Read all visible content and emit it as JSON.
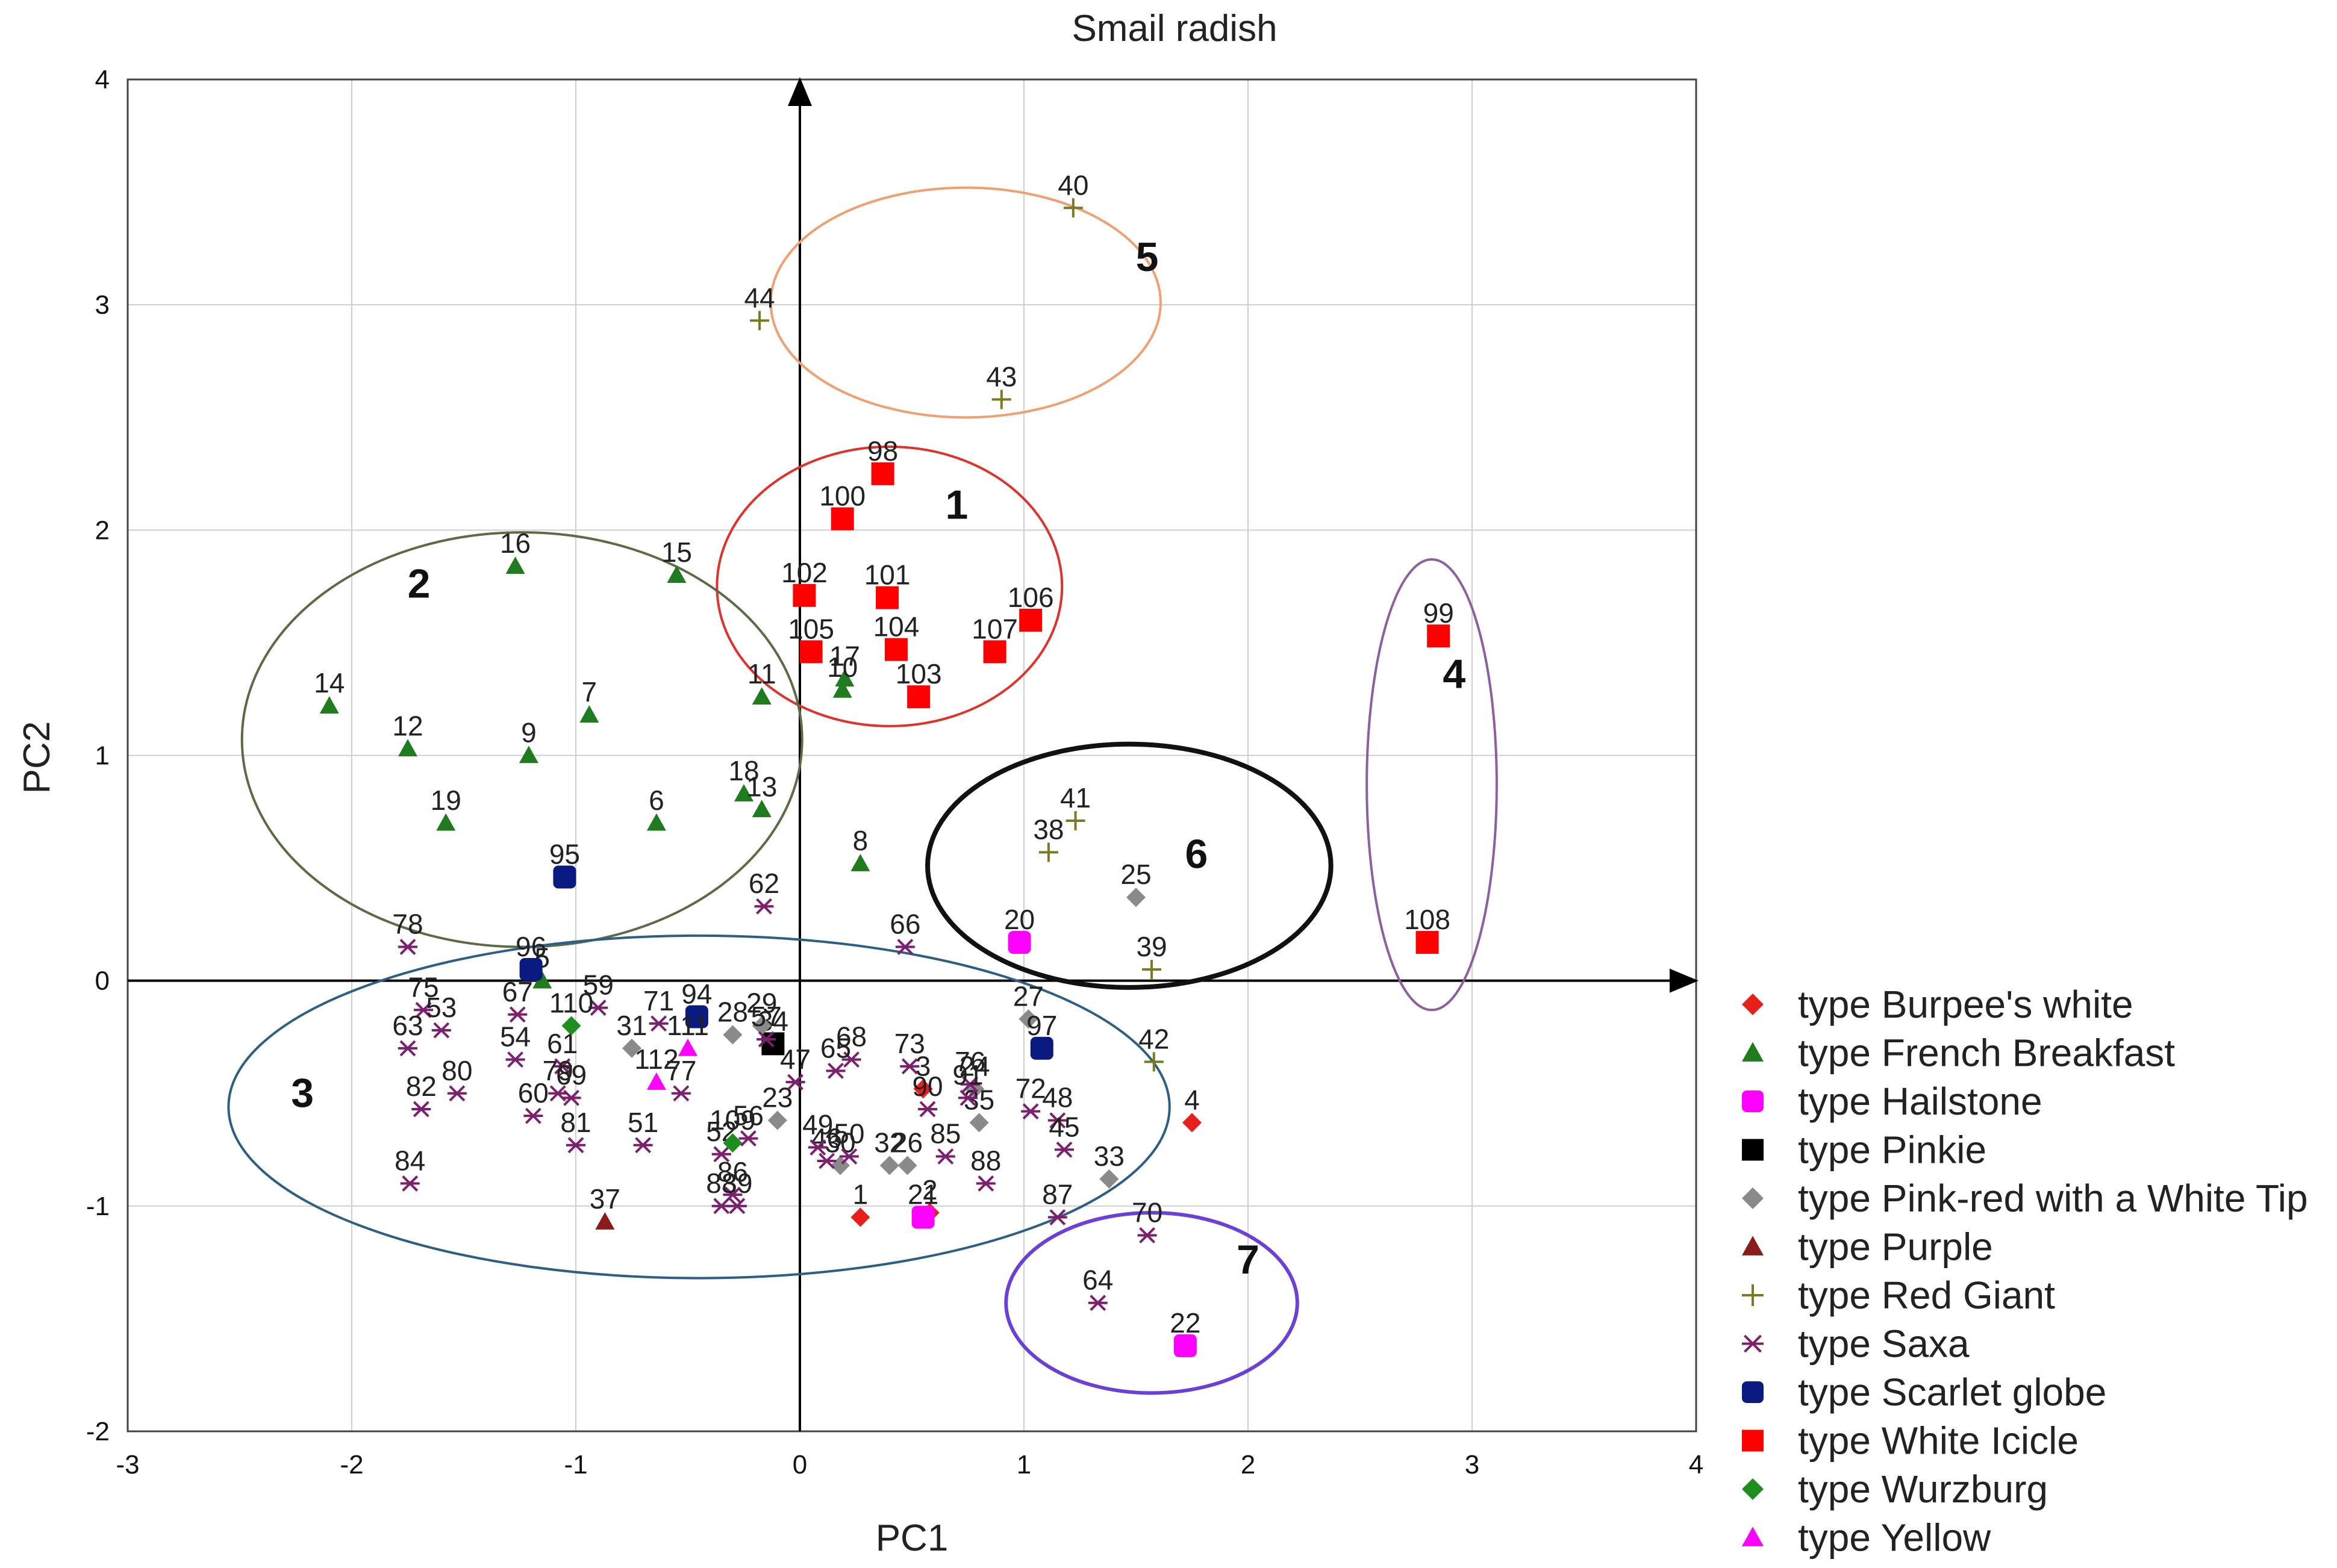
{
  "chart_data": {
    "type": "scatter",
    "title": "Smail radish",
    "xlabel": "PC1",
    "ylabel": "PC2",
    "xlim": [
      -3,
      4
    ],
    "ylim": [
      -2,
      4
    ],
    "xticks": [
      "-3",
      "-2",
      "-1",
      "0",
      "1",
      "2",
      "3",
      "4"
    ],
    "yticks": [
      "-2",
      "-1",
      "0",
      "1",
      "2",
      "3",
      "4"
    ],
    "grid": true,
    "legend_position": "right",
    "series": [
      {
        "name": "type Burpee's white",
        "marker": "diamond",
        "color": "#e8201c",
        "points": [
          {
            "id": "1",
            "x": 0.27,
            "y": -1.05
          },
          {
            "id": "2",
            "x": 0.58,
            "y": -1.03
          },
          {
            "id": "4",
            "x": 1.75,
            "y": -0.63
          },
          {
            "id": "3",
            "x": 0.55,
            "y": -0.48
          }
        ]
      },
      {
        "name": "type French Breakfast",
        "marker": "triangle",
        "color": "#1e7b1e",
        "points": [
          {
            "id": "16",
            "x": -1.27,
            "y": 1.84
          },
          {
            "id": "15",
            "x": -0.55,
            "y": 1.8
          },
          {
            "id": "14",
            "x": -2.1,
            "y": 1.22
          },
          {
            "id": "12",
            "x": -1.75,
            "y": 1.03
          },
          {
            "id": "9",
            "x": -1.21,
            "y": 1.0
          },
          {
            "id": "7",
            "x": -0.94,
            "y": 1.18
          },
          {
            "id": "19",
            "x": -1.58,
            "y": 0.7
          },
          {
            "id": "6",
            "x": -0.64,
            "y": 0.7
          },
          {
            "id": "18",
            "x": -0.25,
            "y": 0.83
          },
          {
            "id": "13",
            "x": -0.17,
            "y": 0.76
          },
          {
            "id": "11",
            "x": -0.17,
            "y": 1.26
          },
          {
            "id": "17",
            "x": 0.2,
            "y": 1.34
          },
          {
            "id": "10",
            "x": 0.19,
            "y": 1.29
          },
          {
            "id": "8",
            "x": 0.27,
            "y": 0.52
          },
          {
            "id": "5",
            "x": -1.15,
            "y": 0.0
          }
        ]
      },
      {
        "name": "type Hailstone",
        "marker": "circle",
        "color": "#ff00ff",
        "points": [
          {
            "id": "20",
            "x": 0.98,
            "y": 0.17
          },
          {
            "id": "21",
            "x": 0.55,
            "y": -1.05
          },
          {
            "id": "22",
            "x": 1.72,
            "y": -1.62
          }
        ]
      },
      {
        "name": "type Pinkie",
        "marker": "square",
        "color": "#000000",
        "points": [
          {
            "id": "34",
            "x": -0.12,
            "y": -0.28
          }
        ]
      },
      {
        "name": "type Pink-red with a White Tip",
        "marker": "diamond",
        "color": "#8a8a8a",
        "points": [
          {
            "id": "25",
            "x": 1.5,
            "y": 0.37
          },
          {
            "id": "27",
            "x": 1.02,
            "y": -0.17
          },
          {
            "id": "28",
            "x": -0.3,
            "y": -0.24
          },
          {
            "id": "29",
            "x": -0.17,
            "y": -0.2
          },
          {
            "id": "31",
            "x": -0.75,
            "y": -0.3
          },
          {
            "id": "33",
            "x": 1.38,
            "y": -0.88
          },
          {
            "id": "23",
            "x": -0.1,
            "y": -0.62
          },
          {
            "id": "24",
            "x": 0.78,
            "y": -0.48
          },
          {
            "id": "26",
            "x": 0.48,
            "y": -0.82
          },
          {
            "id": "32",
            "x": 0.4,
            "y": -0.82
          },
          {
            "id": "30",
            "x": 0.18,
            "y": -0.82
          },
          {
            "id": "35",
            "x": 0.8,
            "y": -0.63
          }
        ]
      },
      {
        "name": "type Purple",
        "marker": "triangle",
        "color": "#8b1a1a",
        "points": [
          {
            "id": "37",
            "x": -0.87,
            "y": -1.07
          }
        ]
      },
      {
        "name": "type Red Giant",
        "marker": "plus",
        "color": "#7a7a22",
        "points": [
          {
            "id": "40",
            "x": 1.22,
            "y": 3.43
          },
          {
            "id": "44",
            "x": -0.18,
            "y": 2.93
          },
          {
            "id": "43",
            "x": 0.9,
            "y": 2.58
          },
          {
            "id": "41",
            "x": 1.23,
            "y": 0.71
          },
          {
            "id": "38",
            "x": 1.11,
            "y": 0.57
          },
          {
            "id": "39",
            "x": 1.57,
            "y": 0.05
          },
          {
            "id": "42",
            "x": 1.58,
            "y": -0.36
          }
        ]
      },
      {
        "name": "type Saxa",
        "marker": "asterisk",
        "color": "#7b1f6e",
        "points": [
          {
            "id": "78",
            "x": -1.75,
            "y": 0.15
          },
          {
            "id": "62",
            "x": -0.16,
            "y": 0.33
          },
          {
            "id": "66",
            "x": 0.47,
            "y": 0.15
          },
          {
            "id": "75",
            "x": -1.68,
            "y": -0.13
          },
          {
            "id": "63",
            "x": -1.75,
            "y": -0.3
          },
          {
            "id": "53",
            "x": -1.6,
            "y": -0.22
          },
          {
            "id": "82",
            "x": -1.69,
            "y": -0.57
          },
          {
            "id": "80",
            "x": -1.53,
            "y": -0.5
          },
          {
            "id": "84",
            "x": -1.74,
            "y": -0.9
          },
          {
            "id": "67",
            "x": -1.26,
            "y": -0.15
          },
          {
            "id": "54",
            "x": -1.27,
            "y": -0.35
          },
          {
            "id": "60",
            "x": -1.19,
            "y": -0.6
          },
          {
            "id": "61",
            "x": -1.06,
            "y": -0.38
          },
          {
            "id": "59",
            "x": -0.9,
            "y": -0.12
          },
          {
            "id": "69",
            "x": -1.02,
            "y": -0.52
          },
          {
            "id": "79",
            "x": -1.08,
            "y": -0.5
          },
          {
            "id": "81",
            "x": -1.0,
            "y": -0.73
          },
          {
            "id": "71",
            "x": -0.63,
            "y": -0.19
          },
          {
            "id": "77",
            "x": -0.53,
            "y": -0.5
          },
          {
            "id": "51",
            "x": -0.7,
            "y": -0.73
          },
          {
            "id": "57",
            "x": -0.15,
            "y": -0.26
          },
          {
            "id": "47",
            "x": -0.02,
            "y": -0.45
          },
          {
            "id": "68",
            "x": 0.23,
            "y": -0.35
          },
          {
            "id": "65",
            "x": 0.16,
            "y": -0.4
          },
          {
            "id": "73",
            "x": 0.49,
            "y": -0.38
          },
          {
            "id": "90",
            "x": 0.57,
            "y": -0.57
          },
          {
            "id": "76",
            "x": 0.76,
            "y": -0.46
          },
          {
            "id": "91",
            "x": 0.75,
            "y": -0.52
          },
          {
            "id": "72",
            "x": 1.03,
            "y": -0.58
          },
          {
            "id": "48",
            "x": 1.15,
            "y": -0.62
          },
          {
            "id": "45",
            "x": 1.18,
            "y": -0.75
          },
          {
            "id": "85",
            "x": 0.65,
            "y": -0.78
          },
          {
            "id": "88",
            "x": 0.83,
            "y": -0.9
          },
          {
            "id": "87",
            "x": 1.15,
            "y": -1.05
          },
          {
            "id": "70",
            "x": 1.55,
            "y": -1.13
          },
          {
            "id": "64",
            "x": 1.33,
            "y": -1.43
          },
          {
            "id": "50",
            "x": 0.22,
            "y": -0.78
          },
          {
            "id": "46",
            "x": 0.12,
            "y": -0.8
          },
          {
            "id": "49",
            "x": 0.08,
            "y": -0.74
          },
          {
            "id": "52",
            "x": -0.35,
            "y": -0.77
          },
          {
            "id": "56",
            "x": -0.23,
            "y": -0.7
          },
          {
            "id": "86",
            "x": -0.3,
            "y": -0.95
          },
          {
            "id": "83",
            "x": -0.35,
            "y": -1.0
          },
          {
            "id": "89",
            "x": -0.28,
            "y": -1.0
          }
        ]
      },
      {
        "name": "type Scarlet globe",
        "marker": "circle",
        "color": "#0a1a80",
        "points": [
          {
            "id": "95",
            "x": -1.05,
            "y": 0.46
          },
          {
            "id": "96",
            "x": -1.2,
            "y": 0.05
          },
          {
            "id": "94",
            "x": -0.46,
            "y": -0.16
          },
          {
            "id": "97",
            "x": 1.08,
            "y": -0.3
          }
        ]
      },
      {
        "name": "type White Icicle",
        "marker": "square",
        "color": "#ff0000",
        "points": [
          {
            "id": "98",
            "x": 0.37,
            "y": 2.25
          },
          {
            "id": "100",
            "x": 0.19,
            "y": 2.05
          },
          {
            "id": "102",
            "x": 0.02,
            "y": 1.71
          },
          {
            "id": "101",
            "x": 0.39,
            "y": 1.7
          },
          {
            "id": "106",
            "x": 1.03,
            "y": 1.6
          },
          {
            "id": "105",
            "x": 0.05,
            "y": 1.46
          },
          {
            "id": "104",
            "x": 0.43,
            "y": 1.47
          },
          {
            "id": "107",
            "x": 0.87,
            "y": 1.46
          },
          {
            "id": "103",
            "x": 0.53,
            "y": 1.26
          },
          {
            "id": "99",
            "x": 2.85,
            "y": 1.53
          },
          {
            "id": "108",
            "x": 2.8,
            "y": 0.17
          }
        ]
      },
      {
        "name": "type Wurzburg",
        "marker": "diamond",
        "color": "#1e8f1e",
        "points": [
          {
            "id": "110",
            "x": -1.02,
            "y": -0.2
          },
          {
            "id": "109",
            "x": -0.3,
            "y": -0.72
          }
        ]
      },
      {
        "name": "type Yellow",
        "marker": "triangle",
        "color": "#ff00ff",
        "points": [
          {
            "id": "111",
            "x": -0.5,
            "y": -0.3
          },
          {
            "id": "112",
            "x": -0.64,
            "y": -0.45
          }
        ]
      }
    ],
    "clusters": [
      {
        "label": "1",
        "cx": 0.4,
        "cy": 1.75,
        "rx": 0.77,
        "ry": 0.62,
        "color": "#e0322a",
        "label_x": 0.7,
        "label_y": 2.05
      },
      {
        "label": "2",
        "cx": -1.24,
        "cy": 1.07,
        "rx": 1.25,
        "ry": 0.92,
        "color": "#5a6b45",
        "label_x": -1.7,
        "label_y": 1.7
      },
      {
        "label": "3",
        "cx": -0.45,
        "cy": -0.56,
        "rx": 2.1,
        "ry": 0.76,
        "color": "#2d5f86",
        "label_x": -2.22,
        "label_y": -0.56
      },
      {
        "label": "4",
        "cx": 2.82,
        "cy": 0.87,
        "rx": 0.29,
        "ry": 1.0,
        "color": "#8e5fa0",
        "label_x": 2.92,
        "label_y": 1.3
      },
      {
        "label": "5",
        "cx": 0.74,
        "cy": 3.01,
        "rx": 0.87,
        "ry": 0.51,
        "color": "#f0a070",
        "label_x": 1.55,
        "label_y": 3.15
      },
      {
        "label": "6",
        "cx": 1.47,
        "cy": 0.51,
        "rx": 0.9,
        "ry": 0.54,
        "color": "#111111",
        "label_x": 1.77,
        "label_y": 0.5
      },
      {
        "label": "7",
        "cx": 1.57,
        "cy": -1.43,
        "rx": 0.65,
        "ry": 0.4,
        "color": "#6a40d8",
        "label_x": 2.0,
        "label_y": -1.3
      }
    ]
  }
}
